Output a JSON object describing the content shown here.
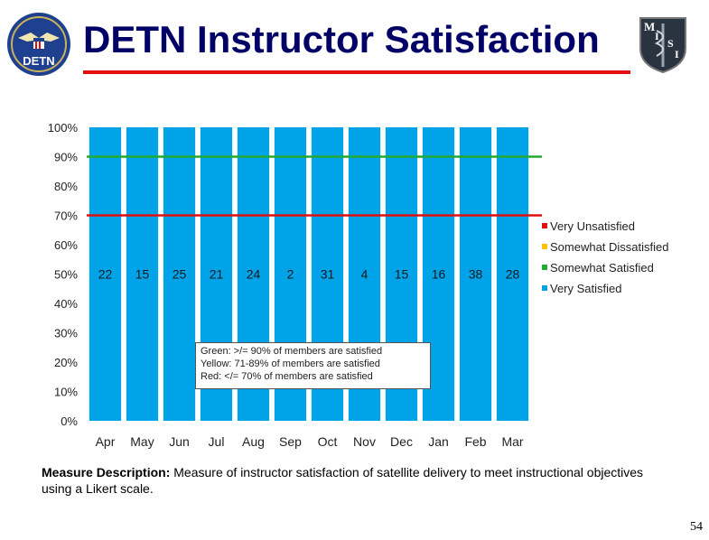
{
  "header": {
    "title": "DETN Instructor Satisfaction",
    "logo_left_text": "DETN",
    "logo_right_text": "MITSI"
  },
  "chart_data": {
    "type": "bar",
    "stacked": true,
    "categories": [
      "Apr",
      "May",
      "Jun",
      "Jul",
      "Aug",
      "Sep",
      "Oct",
      "Nov",
      "Dec",
      "Jan",
      "Feb",
      "Mar"
    ],
    "series": [
      {
        "name": "Very Unsatisfied",
        "color": "#e01010",
        "values": [
          0,
          0,
          0,
          0,
          0,
          0,
          0,
          0,
          0,
          0,
          0,
          0
        ]
      },
      {
        "name": "Somewhat Dissatisfied",
        "color": "#ffc000",
        "values": [
          0,
          0,
          0,
          0,
          0,
          0,
          0,
          0,
          0,
          0,
          0,
          0
        ]
      },
      {
        "name": "Somewhat Satisfied",
        "color": "#22aa33",
        "values": [
          0,
          0,
          0,
          0,
          0,
          0,
          0,
          0,
          0,
          0,
          0,
          0
        ]
      },
      {
        "name": "Very Satisfied",
        "color": "#00a2e8",
        "values": [
          100,
          100,
          100,
          100,
          100,
          100,
          100,
          100,
          100,
          100,
          100,
          100
        ]
      }
    ],
    "data_labels": [
      "22",
      "15",
      "25",
      "21",
      "24",
      "2",
      "31",
      "4",
      "15",
      "16",
      "38",
      "28"
    ],
    "y_ticks": [
      "0%",
      "10%",
      "20%",
      "30%",
      "40%",
      "50%",
      "60%",
      "70%",
      "80%",
      "90%",
      "100%"
    ],
    "ylim": [
      0,
      100
    ],
    "threshold_lines": [
      {
        "value": 90,
        "color": "#22aa33"
      },
      {
        "value": 70,
        "color": "#e01010"
      }
    ],
    "legend_position": "right",
    "grid": false,
    "threshold_legend": [
      "Green: >/= 90% of members are satisfied",
      "Yellow: 71-89% of members are satisfied",
      "Red: </= 70% of members are satisfied"
    ]
  },
  "footer": {
    "measure_label": "Measure Description:",
    "measure_text": " Measure of instructor satisfaction of satellite delivery to meet instructional objectives using a Likert scale.",
    "page_number": "54"
  }
}
